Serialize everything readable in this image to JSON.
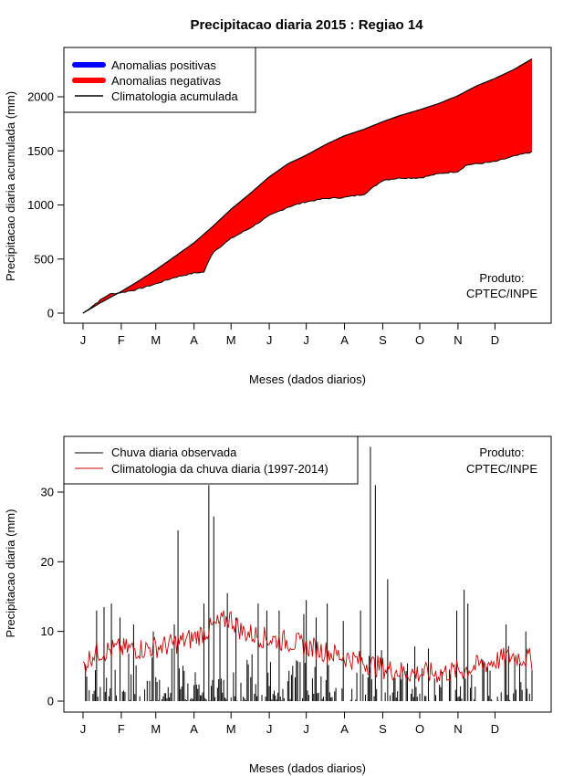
{
  "title": "Precipitacao diaria 2015 : Regiao 14",
  "colors": {
    "positive": "#0000ff",
    "negative": "#ff0000",
    "climatology": "#000000",
    "observed": "#000000",
    "daily_climatology": "#cc0000"
  },
  "chart_data": [
    {
      "type": "area",
      "name": "accumulated",
      "xlabel": "Meses (dados diarios)",
      "ylabel": "Precipitacao diaria acumulada (mm)",
      "x_ticks": [
        "J",
        "F",
        "M",
        "A",
        "M",
        "J",
        "J",
        "A",
        "S",
        "O",
        "N",
        "D"
      ],
      "x_tick_days": [
        1,
        32,
        60,
        91,
        121,
        152,
        182,
        213,
        244,
        274,
        305,
        335
      ],
      "xlim": [
        1,
        365
      ],
      "ylim": [
        0,
        2350
      ],
      "y_ticks": [
        0,
        500,
        1000,
        1500,
        2000
      ],
      "legend": [
        "Anomalias positivas",
        "Anomalias negativas",
        "Climatologia acumulada"
      ],
      "legend_position": "top-left",
      "credit": [
        "Produto:",
        "CPTEC/INPE"
      ],
      "series": [
        {
          "name": "Climatologia acumulada",
          "days": [
            1,
            15,
            32,
            45,
            60,
            75,
            91,
            106,
            121,
            137,
            152,
            167,
            182,
            198,
            213,
            229,
            244,
            259,
            274,
            290,
            305,
            320,
            335,
            350,
            365
          ],
          "values": [
            0,
            95,
            200,
            290,
            400,
            520,
            650,
            800,
            960,
            1110,
            1260,
            1380,
            1460,
            1560,
            1640,
            1700,
            1770,
            1830,
            1880,
            1940,
            2010,
            2100,
            2170,
            2250,
            2350
          ]
        },
        {
          "name": "Observada acumulada",
          "days": [
            1,
            15,
            22,
            32,
            45,
            60,
            75,
            91,
            99,
            106,
            121,
            137,
            152,
            167,
            182,
            198,
            213,
            229,
            236,
            244,
            259,
            274,
            290,
            305,
            312,
            320,
            335,
            350,
            365
          ],
          "values": [
            0,
            120,
            175,
            190,
            220,
            270,
            330,
            370,
            380,
            560,
            690,
            790,
            900,
            980,
            1030,
            1060,
            1070,
            1100,
            1160,
            1230,
            1250,
            1250,
            1290,
            1310,
            1370,
            1380,
            1400,
            1450,
            1490
          ]
        }
      ]
    },
    {
      "type": "bar",
      "name": "daily",
      "xlabel": "Meses (dados diarios)",
      "ylabel": "Precipitacao diaria (mm)",
      "x_ticks": [
        "J",
        "F",
        "M",
        "A",
        "M",
        "J",
        "J",
        "A",
        "S",
        "O",
        "N",
        "D"
      ],
      "x_tick_days": [
        1,
        32,
        60,
        91,
        121,
        152,
        182,
        213,
        244,
        274,
        305,
        335
      ],
      "xlim": [
        1,
        365
      ],
      "ylim": [
        0,
        37
      ],
      "y_ticks": [
        0,
        10,
        20,
        30
      ],
      "legend": [
        "Chuva diaria observada",
        "Climatologia da chuva diaria (1997-2014)"
      ],
      "legend_position": "top-left",
      "credit": [
        "Produto:",
        "CPTEC/INPE"
      ],
      "observed_peaks": {
        "days": [
          12,
          18,
          24,
          31,
          42,
          58,
          75,
          78,
          99,
          103,
          107,
          112,
          118,
          125,
          143,
          150,
          160,
          180,
          182,
          190,
          199,
          212,
          226,
          234,
          238,
          248,
          304,
          310,
          313,
          344,
          360
        ],
        "values": [
          13,
          13.5,
          14,
          12,
          11,
          10,
          11,
          24.5,
          14,
          31,
          26.5,
          11.5,
          15.5,
          12,
          14,
          13,
          13,
          12.5,
          14.5,
          12,
          14,
          11.5,
          13,
          36.5,
          31,
          17.5,
          13,
          16,
          14,
          11,
          10
        ]
      },
      "climatology_anchors": {
        "days": [
          1,
          10,
          30,
          50,
          70,
          90,
          110,
          120,
          130,
          150,
          170,
          190,
          210,
          230,
          250,
          270,
          290,
          310,
          330,
          350,
          365
        ],
        "values": [
          5,
          7,
          7.5,
          7.5,
          8,
          9,
          11,
          12,
          10,
          9,
          8.5,
          7.5,
          6.5,
          5.5,
          4.5,
          4,
          4,
          4.5,
          5.5,
          6.5,
          6
        ]
      }
    }
  ]
}
